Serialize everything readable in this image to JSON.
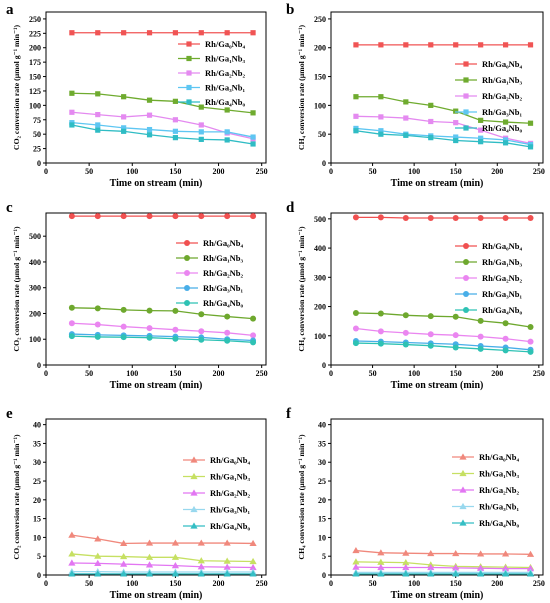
{
  "chart_data": [
    {
      "panel_label": "a",
      "type": "line",
      "marker": "square",
      "xlabel": "Time on stream (min)",
      "ylabel": "CO₂ conversion rate (μmol g⁻¹ min⁻¹)",
      "xlim": [
        0,
        255
      ],
      "ylim": [
        0,
        262
      ],
      "xticks": [
        0,
        50,
        100,
        150,
        200,
        250
      ],
      "yticks": [
        0,
        25,
        50,
        75,
        100,
        125,
        150,
        175,
        200,
        225,
        250
      ],
      "grid": false,
      "legend_position": "upper-right",
      "x": [
        30,
        60,
        90,
        120,
        150,
        180,
        210,
        240
      ],
      "series": [
        {
          "name": "Rh/Ga₀Nb₄",
          "color": "#f05454",
          "values": [
            226,
            226,
            226,
            226,
            226,
            226,
            226,
            226
          ]
        },
        {
          "name": "Rh/Ga₁Nb₃",
          "color": "#6fab2f",
          "values": [
            121,
            120,
            115,
            109,
            107,
            97,
            92,
            87
          ]
        },
        {
          "name": "Rh/Ga₂Nb₂",
          "color": "#e48af0",
          "values": [
            88,
            84,
            80,
            83,
            75,
            66,
            52,
            42
          ]
        },
        {
          "name": "Rh/Ga₃Nb₁",
          "color": "#5ec6f2",
          "values": [
            70,
            66,
            61,
            58,
            55,
            54,
            54,
            45
          ]
        },
        {
          "name": "Rh/Ga₄Nb₀",
          "color": "#2fbcc4",
          "values": [
            66,
            57,
            55,
            49,
            44,
            41,
            40,
            33
          ]
        }
      ]
    },
    {
      "panel_label": "b",
      "type": "line",
      "marker": "square",
      "xlabel": "Time on stream (min)",
      "ylabel": "CH₄ conversion rate (μmol g⁻¹ min⁻¹)",
      "xlim": [
        0,
        255
      ],
      "ylim": [
        0,
        262
      ],
      "xticks": [
        0,
        50,
        100,
        150,
        200,
        250
      ],
      "yticks": [
        0,
        50,
        100,
        150,
        200,
        250
      ],
      "grid": false,
      "legend_position": "upper-right",
      "x": [
        30,
        60,
        90,
        120,
        150,
        180,
        210,
        240
      ],
      "series": [
        {
          "name": "Rh/Ga₀Nb₄",
          "color": "#f05454",
          "values": [
            205,
            205,
            205,
            205,
            205,
            205,
            205,
            205
          ]
        },
        {
          "name": "Rh/Ga₁Nb₃",
          "color": "#6fab2f",
          "values": [
            115,
            115,
            106,
            100,
            90,
            74,
            71,
            69
          ]
        },
        {
          "name": "Rh/Ga₂Nb₂",
          "color": "#e48af0",
          "values": [
            81,
            80,
            78,
            72,
            70,
            57,
            43,
            34
          ]
        },
        {
          "name": "Rh/Ga₃Nb₁",
          "color": "#5ec6f2",
          "values": [
            60,
            56,
            50,
            47,
            45,
            43,
            40,
            32
          ]
        },
        {
          "name": "Rh/Ga₄Nb₀",
          "color": "#2fbcc4",
          "values": [
            56,
            50,
            48,
            44,
            39,
            37,
            35,
            28
          ]
        }
      ]
    },
    {
      "panel_label": "c",
      "type": "line",
      "marker": "circle",
      "xlabel": "Time on stream (min)",
      "ylabel": "CO₂ conversion rate (μmol g⁻¹ min⁻¹)",
      "xlim": [
        0,
        255
      ],
      "ylim": [
        0,
        590
      ],
      "xticks": [
        0,
        50,
        100,
        150,
        200,
        250
      ],
      "yticks": [
        0,
        100,
        200,
        300,
        400,
        500
      ],
      "grid": false,
      "legend_position": "upper-right",
      "x": [
        30,
        60,
        90,
        120,
        150,
        180,
        210,
        240
      ],
      "series": [
        {
          "name": "Rh/Ga₀Nb₄",
          "color": "#f05050",
          "values": [
            578,
            578,
            578,
            578,
            578,
            578,
            578,
            578
          ]
        },
        {
          "name": "Rh/Ga₁Nb₃",
          "color": "#6ea82e",
          "values": [
            222,
            220,
            214,
            211,
            210,
            197,
            188,
            180
          ]
        },
        {
          "name": "Rh/Ga₂Nb₂",
          "color": "#ea86f0",
          "values": [
            162,
            157,
            149,
            143,
            137,
            131,
            125,
            115
          ]
        },
        {
          "name": "Rh/Ga₃Nb₁",
          "color": "#48aee8",
          "values": [
            120,
            117,
            115,
            113,
            110,
            107,
            100,
            95
          ]
        },
        {
          "name": "Rh/Ga₄Nb₀",
          "color": "#2ec2b4",
          "values": [
            112,
            109,
            108,
            106,
            102,
            98,
            94,
            88
          ]
        }
      ]
    },
    {
      "panel_label": "d",
      "type": "line",
      "marker": "circle",
      "xlabel": "Time on stream (min)",
      "ylabel": "CH₄ conversion rate (μmol g⁻¹ min⁻¹)",
      "xlim": [
        0,
        255
      ],
      "ylim": [
        0,
        520
      ],
      "xticks": [
        0,
        50,
        100,
        150,
        200,
        250
      ],
      "yticks": [
        0,
        100,
        200,
        300,
        400,
        500
      ],
      "grid": false,
      "legend_position": "upper-right",
      "x": [
        30,
        60,
        90,
        120,
        150,
        180,
        210,
        240
      ],
      "series": [
        {
          "name": "Rh/Ga₀Nb₄",
          "color": "#f05050",
          "values": [
            505,
            505,
            503,
            503,
            503,
            503,
            503,
            503
          ]
        },
        {
          "name": "Rh/Ga₁Nb₃",
          "color": "#6ea82e",
          "values": [
            178,
            176,
            170,
            167,
            165,
            151,
            143,
            130
          ]
        },
        {
          "name": "Rh/Ga₂Nb₂",
          "color": "#ea86f0",
          "values": [
            125,
            115,
            110,
            105,
            102,
            97,
            90,
            80
          ]
        },
        {
          "name": "Rh/Ga₃Nb₁",
          "color": "#48aee8",
          "values": [
            82,
            80,
            77,
            74,
            71,
            65,
            60,
            52
          ]
        },
        {
          "name": "Rh/Ga₄Nb₀",
          "color": "#2ec2b4",
          "values": [
            75,
            73,
            70,
            66,
            60,
            55,
            50,
            45
          ]
        }
      ]
    },
    {
      "panel_label": "e",
      "type": "line",
      "marker": "triangle",
      "xlabel": "Time on stream (min)",
      "ylabel": "CO₂ conversion rate (μmol g⁻¹ min⁻¹)",
      "xlim": [
        0,
        255
      ],
      "ylim": [
        0,
        41.5
      ],
      "xticks": [
        0,
        50,
        100,
        150,
        200,
        250
      ],
      "yticks": [
        0,
        5,
        10,
        15,
        20,
        25,
        30,
        35,
        40
      ],
      "grid": false,
      "legend_position": "upper-right",
      "x": [
        30,
        60,
        90,
        120,
        150,
        180,
        210,
        240
      ],
      "series": [
        {
          "name": "Rh/Ga₀Nb₄",
          "color": "#f0887c",
          "values": [
            10.6,
            9.6,
            8.4,
            8.5,
            8.5,
            8.5,
            8.5,
            8.4
          ]
        },
        {
          "name": "Rh/Ga₁Nb₃",
          "color": "#c6e062",
          "values": [
            5.6,
            5.0,
            4.9,
            4.7,
            4.7,
            3.8,
            3.7,
            3.6
          ]
        },
        {
          "name": "Rh/Ga₂Nb₂",
          "color": "#e276f2",
          "values": [
            3.2,
            3.1,
            2.9,
            2.7,
            2.5,
            2.2,
            2.1,
            2.0
          ]
        },
        {
          "name": "Rh/Ga₃Nb₁",
          "color": "#98d8ee",
          "values": [
            0.9,
            0.9,
            0.8,
            0.8,
            0.8,
            0.8,
            0.8,
            0.8
          ]
        },
        {
          "name": "Rh/Ga₄Nb₀",
          "color": "#34bec4",
          "values": [
            0.3,
            0.3,
            0.3,
            0.3,
            0.3,
            0.3,
            0.3,
            0.3
          ]
        }
      ]
    },
    {
      "panel_label": "f",
      "type": "line",
      "marker": "triangle",
      "xlabel": "Time on stream (min)",
      "ylabel": "CH₄ conversion rate (μmol g⁻¹ min⁻¹)",
      "xlim": [
        0,
        255
      ],
      "ylim": [
        0,
        41.5
      ],
      "xticks": [
        0,
        50,
        100,
        150,
        200,
        250
      ],
      "yticks": [
        0,
        5,
        10,
        15,
        20,
        25,
        30,
        35,
        40
      ],
      "grid": false,
      "legend_position": "upper-right",
      "x": [
        30,
        60,
        90,
        120,
        150,
        180,
        210,
        240
      ],
      "series": [
        {
          "name": "Rh/Ga₀Nb₄",
          "color": "#f0887c",
          "values": [
            6.5,
            5.9,
            5.8,
            5.7,
            5.7,
            5.6,
            5.6,
            5.5
          ]
        },
        {
          "name": "Rh/Ga₁Nb₃",
          "color": "#c6e062",
          "values": [
            3.5,
            3.4,
            3.3,
            2.7,
            2.3,
            2.2,
            2.1,
            2.0
          ]
        },
        {
          "name": "Rh/Ga₂Nb₂",
          "color": "#e276f2",
          "values": [
            2.1,
            2.0,
            2.0,
            2.0,
            1.9,
            1.8,
            1.7,
            1.7
          ]
        },
        {
          "name": "Rh/Ga₃Nb₁",
          "color": "#98d8ee",
          "values": [
            0.7,
            0.7,
            0.7,
            0.7,
            0.7,
            0.7,
            0.7,
            0.7
          ]
        },
        {
          "name": "Rh/Ga₄Nb₀",
          "color": "#34bec4",
          "values": [
            0.3,
            0.3,
            0.3,
            0.3,
            0.3,
            0.3,
            0.3,
            0.3
          ]
        }
      ]
    }
  ]
}
